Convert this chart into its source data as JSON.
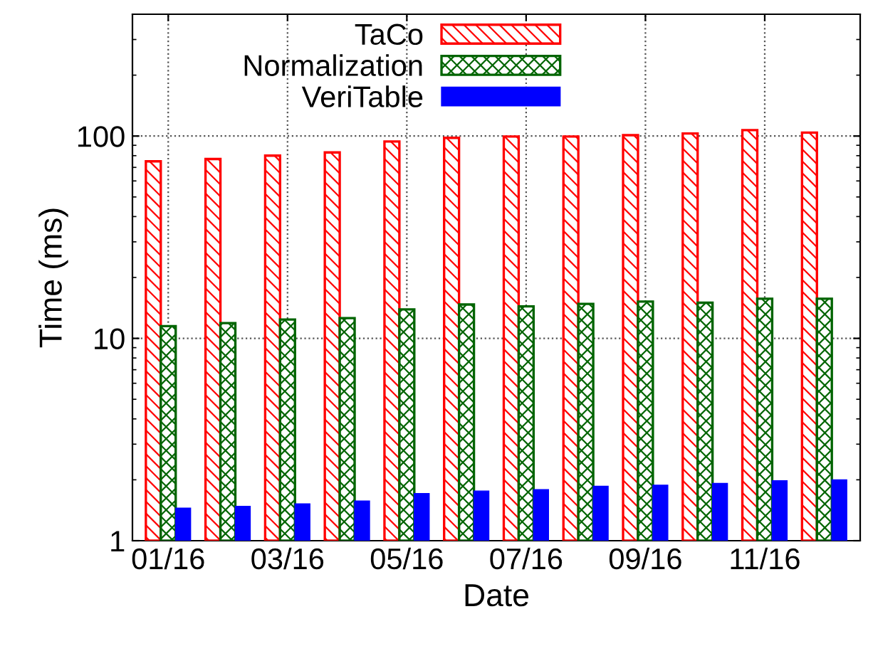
{
  "chart_data": {
    "type": "bar",
    "xlabel": "Date",
    "ylabel": "Time (ms)",
    "categories": [
      "01/16",
      null,
      "03/16",
      null,
      "05/16",
      null,
      "07/16",
      null,
      "09/16",
      null,
      "11/16",
      null
    ],
    "series": [
      {
        "name": "TaCo",
        "color": "#ff0000",
        "values": [
          75,
          77,
          80,
          83,
          94,
          98,
          99.5,
          99.5,
          101,
          103,
          107,
          104
        ]
      },
      {
        "name": "Normalization",
        "color": "#006400",
        "values": [
          11.5,
          11.9,
          12.4,
          12.6,
          13.9,
          14.7,
          14.4,
          14.8,
          15.2,
          15.0,
          15.7,
          15.7
        ]
      },
      {
        "name": "VeriTable",
        "color": "#0000ff",
        "values": [
          1.45,
          1.48,
          1.52,
          1.57,
          1.71,
          1.76,
          1.79,
          1.86,
          1.88,
          1.92,
          1.98,
          2.0
        ]
      }
    ],
    "log": "y",
    "ylim": [
      1,
      400
    ],
    "yticks": [
      1,
      10,
      100
    ],
    "grid": true,
    "legend": "top"
  }
}
